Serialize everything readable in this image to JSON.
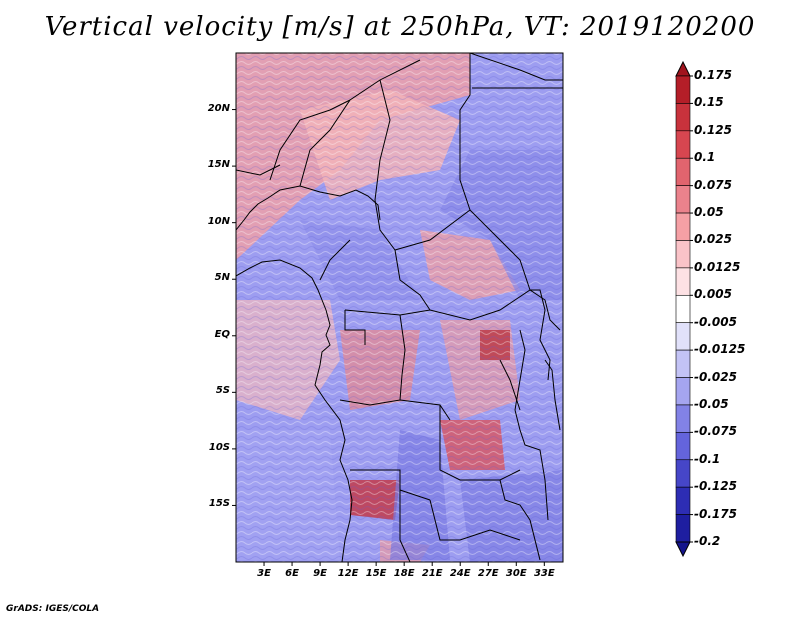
{
  "title": "Vertical velocity [m/s] at 250hPa, VT: 2019120200",
  "credit": "GrADS: IGES/COLA",
  "map": {
    "lon_range": [
      0,
      35
    ],
    "lat_range": [
      -20,
      25
    ],
    "lat_labels": [
      "20N",
      "15N",
      "10N",
      "5N",
      "EQ",
      "5S",
      "10S",
      "15S"
    ],
    "lat_values": [
      20,
      15,
      10,
      5,
      0,
      -5,
      -10,
      -15
    ],
    "lon_labels": [
      "3E",
      "6E",
      "9E",
      "12E",
      "15E",
      "18E",
      "21E",
      "24E",
      "27E",
      "30E",
      "33E"
    ],
    "lon_values": [
      3,
      6,
      9,
      12,
      15,
      18,
      21,
      24,
      27,
      30,
      33
    ]
  },
  "colorbar": {
    "labels": [
      "0.175",
      "0.15",
      "0.125",
      "0.1",
      "0.075",
      "0.05",
      "0.025",
      "0.0125",
      "0.005",
      "-0.005",
      "-0.0125",
      "-0.025",
      "-0.05",
      "-0.075",
      "-0.1",
      "-0.125",
      "-0.175",
      "-0.2"
    ],
    "colors": [
      "#a0141e",
      "#b41e28",
      "#c8323c",
      "#d74650",
      "#e1646e",
      "#eb828c",
      "#f5a0a5",
      "#fac3c8",
      "#fde1e4",
      "#ffffff",
      "#e1e1fa",
      "#c3c3f5",
      "#a5a5f0",
      "#8282e6",
      "#6464dc",
      "#4646c8",
      "#2d2db4",
      "#1e1ea0",
      "#14148c"
    ]
  }
}
